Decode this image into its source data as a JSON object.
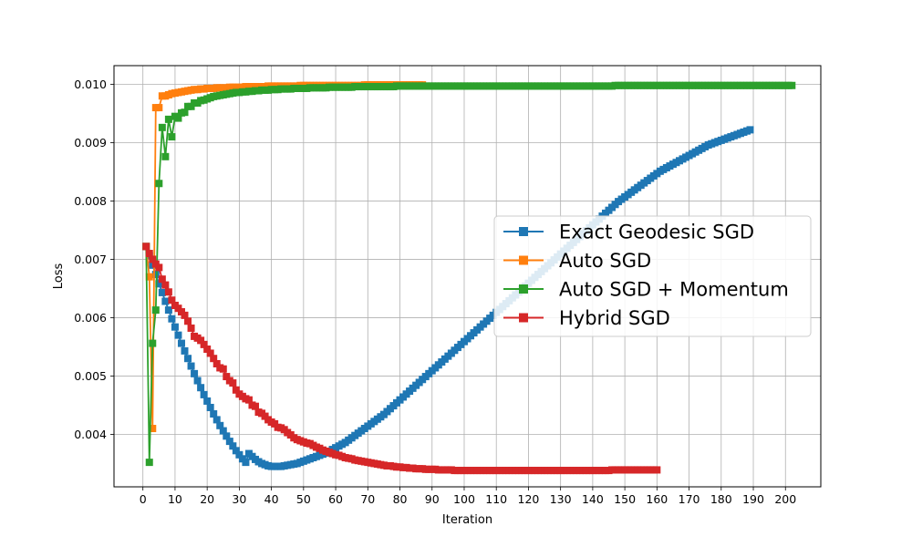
{
  "chart_data": {
    "type": "line",
    "xlabel": "Iteration",
    "ylabel": "Loss",
    "xlim": [
      -9,
      211
    ],
    "ylim": [
      0.0031,
      0.01032
    ],
    "xticks": [
      0,
      10,
      20,
      30,
      40,
      50,
      60,
      70,
      80,
      90,
      100,
      110,
      120,
      130,
      140,
      150,
      160,
      170,
      180,
      190,
      200
    ],
    "xtick_labels": [
      "0",
      "10",
      "20",
      "30",
      "40",
      "50",
      "60",
      "70",
      "80",
      "90",
      "100",
      "110",
      "120",
      "130",
      "140",
      "150",
      "160",
      "170",
      "180",
      "190",
      "200"
    ],
    "yticks": [
      0.004,
      0.005,
      0.006,
      0.007,
      0.008,
      0.009,
      0.01
    ],
    "ytick_labels": [
      "0.004",
      "0.005",
      "0.006",
      "0.007",
      "0.008",
      "0.009",
      "0.010"
    ],
    "grid": true,
    "legend_position": "center-right",
    "marker": "square",
    "series": [
      {
        "name": "Exact Geodesic SGD",
        "color": "#1f77b4",
        "x_start": 1,
        "values": [
          0.00722,
          0.00706,
          0.0069,
          0.00674,
          0.00658,
          0.00643,
          0.00628,
          0.00613,
          0.00598,
          0.00584,
          0.0057,
          0.00556,
          0.00543,
          0.0053,
          0.00517,
          0.00504,
          0.00492,
          0.0048,
          0.00468,
          0.00457,
          0.00446,
          0.00435,
          0.00425,
          0.00415,
          0.00406,
          0.00397,
          0.00388,
          0.0038,
          0.00372,
          0.00365,
          0.00358,
          0.00352,
          0.00367,
          0.00362,
          0.00357,
          0.00353,
          0.0035,
          0.00348,
          0.00346,
          0.00345,
          0.00345,
          0.00345,
          0.00345,
          0.00346,
          0.00347,
          0.00348,
          0.00349,
          0.0035,
          0.00352,
          0.00354,
          0.00356,
          0.00358,
          0.0036,
          0.00362,
          0.00364,
          0.00366,
          0.00368,
          0.00371,
          0.00374,
          0.00377,
          0.0038,
          0.00383,
          0.00386,
          0.0039,
          0.00394,
          0.00398,
          0.00402,
          0.00406,
          0.0041,
          0.00414,
          0.00418,
          0.00422,
          0.00426,
          0.0043,
          0.00434,
          0.00439,
          0.00444,
          0.00449,
          0.00454,
          0.00459,
          0.00464,
          0.00469,
          0.00474,
          0.00479,
          0.00484,
          0.00489,
          0.00494,
          0.00499,
          0.00504,
          0.00509,
          0.00514,
          0.00519,
          0.00524,
          0.00529,
          0.00534,
          0.00539,
          0.00544,
          0.00549,
          0.00554,
          0.00559,
          0.00564,
          0.00569,
          0.00574,
          0.00579,
          0.00584,
          0.00589,
          0.00594,
          0.00599,
          0.00604,
          0.00609,
          0.00614,
          0.00619,
          0.00624,
          0.00629,
          0.00634,
          0.00639,
          0.00644,
          0.00649,
          0.00654,
          0.00659,
          0.00664,
          0.00669,
          0.00674,
          0.00679,
          0.00684,
          0.00689,
          0.00694,
          0.00699,
          0.00704,
          0.00709,
          0.00714,
          0.00719,
          0.00724,
          0.00729,
          0.00734,
          0.00739,
          0.00744,
          0.00749,
          0.00754,
          0.00759,
          0.00764,
          0.00769,
          0.00774,
          0.00779,
          0.00784,
          0.00789,
          0.00794,
          0.00799,
          0.00803,
          0.00807,
          0.00811,
          0.00815,
          0.00819,
          0.00823,
          0.00827,
          0.00831,
          0.00835,
          0.00839,
          0.00843,
          0.00847,
          0.00851,
          0.00854,
          0.00857,
          0.0086,
          0.00863,
          0.00866,
          0.00869,
          0.00872,
          0.00875,
          0.00878,
          0.00881,
          0.00884,
          0.00887,
          0.0089,
          0.00893,
          0.00896,
          0.00898,
          0.009,
          0.00902,
          0.00904,
          0.00906,
          0.00908,
          0.0091,
          0.00912,
          0.00914,
          0.00916,
          0.00918,
          0.0092,
          0.00922
        ]
      },
      {
        "name": "Auto SGD",
        "color": "#ff7f0e",
        "x_start": 1,
        "values": [
          0.00722,
          0.0067,
          0.0041,
          0.0096,
          0.0096,
          0.0098,
          0.0098,
          0.00982,
          0.00984,
          0.00985,
          0.00986,
          0.00987,
          0.00988,
          0.00989,
          0.0099,
          0.00991,
          0.00991,
          0.00992,
          0.00992,
          0.00993,
          0.00993,
          0.00993,
          0.00994,
          0.00994,
          0.00994,
          0.00994,
          0.00995,
          0.00995,
          0.00995,
          0.00995,
          0.00995,
          0.00996,
          0.00996,
          0.00996,
          0.00996,
          0.00996,
          0.00996,
          0.00996,
          0.00997,
          0.00997,
          0.00997,
          0.00997,
          0.00997,
          0.00997,
          0.00997,
          0.00997,
          0.00997,
          0.00997,
          0.00998,
          0.00998,
          0.00998,
          0.00998,
          0.00998,
          0.00998,
          0.00998,
          0.00998,
          0.00998,
          0.00998,
          0.00998,
          0.00998,
          0.00998,
          0.00998,
          0.00998,
          0.00998,
          0.00998,
          0.00998,
          0.00998,
          0.00998,
          0.00999,
          0.00999,
          0.00999,
          0.00999,
          0.00999,
          0.00999,
          0.00999,
          0.00999,
          0.00999,
          0.00999,
          0.00999,
          0.00999,
          0.00999,
          0.00999,
          0.00999,
          0.00999,
          0.00999,
          0.00999,
          0.00999
        ]
      },
      {
        "name": "Auto SGD + Momentum",
        "color": "#2ca02c",
        "x_start": 1,
        "values": [
          0.00722,
          0.00352,
          0.00556,
          0.00613,
          0.0083,
          0.00926,
          0.00876,
          0.0094,
          0.0091,
          0.00945,
          0.00942,
          0.00951,
          0.00952,
          0.00962,
          0.00962,
          0.00968,
          0.00968,
          0.00972,
          0.00973,
          0.00975,
          0.00977,
          0.00979,
          0.0098,
          0.00981,
          0.00982,
          0.00983,
          0.00984,
          0.00985,
          0.00986,
          0.00986,
          0.00987,
          0.00987,
          0.00988,
          0.00988,
          0.00989,
          0.00989,
          0.0099,
          0.0099,
          0.0099,
          0.00991,
          0.00991,
          0.00991,
          0.00992,
          0.00992,
          0.00992,
          0.00992,
          0.00993,
          0.00993,
          0.00993,
          0.00993,
          0.00993,
          0.00994,
          0.00994,
          0.00994,
          0.00994,
          0.00994,
          0.00994,
          0.00995,
          0.00995,
          0.00995,
          0.00995,
          0.00995,
          0.00995,
          0.00995,
          0.00995,
          0.00996,
          0.00996,
          0.00996,
          0.00996,
          0.00996,
          0.00996,
          0.00996,
          0.00996,
          0.00996,
          0.00996,
          0.00996,
          0.00996,
          0.00996,
          0.00997,
          0.00997,
          0.00997,
          0.00997,
          0.00997,
          0.00997,
          0.00997,
          0.00997,
          0.00997,
          0.00997,
          0.00997,
          0.00997,
          0.00997,
          0.00997,
          0.00997,
          0.00997,
          0.00997,
          0.00997,
          0.00997,
          0.00997,
          0.00997,
          0.00997,
          0.00997,
          0.00997,
          0.00997,
          0.00997,
          0.00997,
          0.00997,
          0.00997,
          0.00997,
          0.00997,
          0.00997,
          0.00997,
          0.00997,
          0.00997,
          0.00997,
          0.00997,
          0.00997,
          0.00997,
          0.00997,
          0.00997,
          0.00997,
          0.00997,
          0.00997,
          0.00997,
          0.00997,
          0.00997,
          0.00997,
          0.00997,
          0.00997,
          0.00997,
          0.00997,
          0.00997,
          0.00997,
          0.00997,
          0.00997,
          0.00997,
          0.00997,
          0.00997,
          0.00997,
          0.00997,
          0.00997,
          0.00997,
          0.00997,
          0.00997,
          0.00997,
          0.00997,
          0.00997,
          0.00998,
          0.00998,
          0.00998,
          0.00998,
          0.00998,
          0.00998,
          0.00998,
          0.00998,
          0.00998,
          0.00998,
          0.00998,
          0.00998,
          0.00998,
          0.00998,
          0.00998,
          0.00998,
          0.00998,
          0.00998,
          0.00998,
          0.00998,
          0.00998,
          0.00998,
          0.00998,
          0.00998,
          0.00998,
          0.00998,
          0.00998,
          0.00998,
          0.00998,
          0.00998,
          0.00998,
          0.00998,
          0.00998,
          0.00998,
          0.00998,
          0.00998,
          0.00998,
          0.00998,
          0.00998,
          0.00998,
          0.00998,
          0.00998,
          0.00998,
          0.00998,
          0.00998,
          0.00998,
          0.00998,
          0.00998,
          0.00998,
          0.00998,
          0.00998,
          0.00998,
          0.00998,
          0.00998,
          0.00998,
          0.00998
        ]
      },
      {
        "name": "Hybrid SGD",
        "color": "#d62728",
        "x_start": 1,
        "values": [
          0.00722,
          0.0071,
          0.007,
          0.00692,
          0.00686,
          0.00666,
          0.00656,
          0.00644,
          0.0063,
          0.00621,
          0.00616,
          0.0061,
          0.00604,
          0.00594,
          0.00582,
          0.00568,
          0.00565,
          0.00561,
          0.00554,
          0.00546,
          0.00539,
          0.0053,
          0.00521,
          0.00514,
          0.00512,
          0.00499,
          0.00492,
          0.00488,
          0.00476,
          0.00469,
          0.00465,
          0.00461,
          0.00459,
          0.0045,
          0.00448,
          0.00438,
          0.00436,
          0.00431,
          0.00425,
          0.00421,
          0.00418,
          0.00412,
          0.00411,
          0.00408,
          0.00403,
          0.00399,
          0.00394,
          0.00391,
          0.00389,
          0.00387,
          0.00385,
          0.00384,
          0.00381,
          0.00378,
          0.00376,
          0.00373,
          0.00371,
          0.00369,
          0.00367,
          0.00365,
          0.00364,
          0.00362,
          0.0036,
          0.00359,
          0.00358,
          0.00356,
          0.00355,
          0.00354,
          0.00353,
          0.00352,
          0.00351,
          0.0035,
          0.00349,
          0.00348,
          0.00347,
          0.00346,
          0.00346,
          0.00345,
          0.00344,
          0.00344,
          0.00343,
          0.00343,
          0.00342,
          0.00342,
          0.00341,
          0.00341,
          0.00341,
          0.0034,
          0.0034,
          0.0034,
          0.0034,
          0.00339,
          0.00339,
          0.00339,
          0.00339,
          0.00339,
          0.00338,
          0.00338,
          0.00338,
          0.00338,
          0.00338,
          0.00338,
          0.00338,
          0.00338,
          0.00338,
          0.00338,
          0.00338,
          0.00338,
          0.00338,
          0.00338,
          0.00338,
          0.00338,
          0.00338,
          0.00338,
          0.00338,
          0.00338,
          0.00338,
          0.00338,
          0.00338,
          0.00338,
          0.00338,
          0.00338,
          0.00338,
          0.00338,
          0.00338,
          0.00338,
          0.00338,
          0.00338,
          0.00338,
          0.00338,
          0.00338,
          0.00338,
          0.00338,
          0.00338,
          0.00338,
          0.00338,
          0.00338,
          0.00338,
          0.00338,
          0.00338,
          0.00338,
          0.00338,
          0.00338,
          0.00338,
          0.00338,
          0.00339,
          0.00339,
          0.00339,
          0.00339,
          0.00339,
          0.00339,
          0.00339,
          0.00339,
          0.00339,
          0.00339,
          0.00339,
          0.00339,
          0.00339,
          0.00339,
          0.00339
        ]
      }
    ]
  }
}
